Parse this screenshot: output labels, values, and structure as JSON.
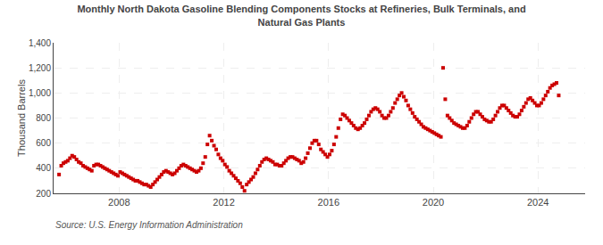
{
  "chart_data": {
    "type": "scatter",
    "title": "Monthly North Dakota Gasoline Blending Components Stocks at Refineries, Bulk Terminals, and\nNatural Gas Plants",
    "ylabel": "Thousand Barrels",
    "annotations": [
      "Source: U.S. Energy Information Administration"
    ],
    "color": "#cc0000",
    "marker": "square",
    "grid": true,
    "xlim": [
      2005.5,
      2025.8
    ],
    "xticks": [
      2008,
      2012,
      2016,
      2020,
      2024
    ],
    "ylim": [
      200,
      1400
    ],
    "yticks": [
      200,
      400,
      600,
      800,
      {
        "value": 1000,
        "label": "1,000"
      },
      {
        "value": 1200,
        "label": "1,200"
      },
      {
        "value": 1400,
        "label": "1,400"
      }
    ],
    "x": [
      2005.7083,
      2005.7917,
      2005.875,
      2005.9583,
      2006.0417,
      2006.125,
      2006.2083,
      2006.2917,
      2006.375,
      2006.4583,
      2006.5417,
      2006.625,
      2006.7083,
      2006.7917,
      2006.875,
      2006.9583,
      2007.0417,
      2007.125,
      2007.2083,
      2007.2917,
      2007.375,
      2007.4583,
      2007.5417,
      2007.625,
      2007.7083,
      2007.7917,
      2007.875,
      2007.9583,
      2008.0417,
      2008.125,
      2008.2083,
      2008.2917,
      2008.375,
      2008.4583,
      2008.5417,
      2008.625,
      2008.7083,
      2008.7917,
      2008.875,
      2008.9583,
      2009.0417,
      2009.125,
      2009.2083,
      2009.2917,
      2009.375,
      2009.4583,
      2009.5417,
      2009.625,
      2009.7083,
      2009.7917,
      2009.875,
      2009.9583,
      2010.0417,
      2010.125,
      2010.2083,
      2010.2917,
      2010.375,
      2010.4583,
      2010.5417,
      2010.625,
      2010.7083,
      2010.7917,
      2010.875,
      2010.9583,
      2011.0417,
      2011.125,
      2011.2083,
      2011.2917,
      2011.375,
      2011.4583,
      2011.5417,
      2011.625,
      2011.7083,
      2011.7917,
      2011.875,
      2011.9583,
      2012.0417,
      2012.125,
      2012.2083,
      2012.2917,
      2012.375,
      2012.4583,
      2012.5417,
      2012.625,
      2012.7083,
      2012.7917,
      2012.875,
      2012.9583,
      2013.0417,
      2013.125,
      2013.2083,
      2013.2917,
      2013.375,
      2013.4583,
      2013.5417,
      2013.625,
      2013.7083,
      2013.7917,
      2013.875,
      2013.9583,
      2014.0417,
      2014.125,
      2014.2083,
      2014.2917,
      2014.375,
      2014.4583,
      2014.5417,
      2014.625,
      2014.7083,
      2014.7917,
      2014.875,
      2014.9583,
      2015.0417,
      2015.125,
      2015.2083,
      2015.2917,
      2015.375,
      2015.4583,
      2015.5417,
      2015.625,
      2015.7083,
      2015.7917,
      2015.875,
      2015.9583,
      2016.0417,
      2016.125,
      2016.2083,
      2016.2917,
      2016.375,
      2016.4583,
      2016.5417,
      2016.625,
      2016.7083,
      2016.7917,
      2016.875,
      2016.9583,
      2017.0417,
      2017.125,
      2017.2083,
      2017.2917,
      2017.375,
      2017.4583,
      2017.5417,
      2017.625,
      2017.7083,
      2017.7917,
      2017.875,
      2017.9583,
      2018.0417,
      2018.125,
      2018.2083,
      2018.2917,
      2018.375,
      2018.4583,
      2018.5417,
      2018.625,
      2018.7083,
      2018.7917,
      2018.875,
      2018.9583,
      2019.0417,
      2019.125,
      2019.2083,
      2019.2917,
      2019.375,
      2019.4583,
      2019.5417,
      2019.625,
      2019.7083,
      2019.7917,
      2019.875,
      2019.9583,
      2020.0417,
      2020.125,
      2020.2083,
      2020.2917,
      2020.375,
      2020.4583,
      2020.5417,
      2020.625,
      2020.7083,
      2020.7917,
      2020.875,
      2020.9583,
      2021.0417,
      2021.125,
      2021.2083,
      2021.2917,
      2021.375,
      2021.4583,
      2021.5417,
      2021.625,
      2021.7083,
      2021.7917,
      2021.875,
      2021.9583,
      2022.0417,
      2022.125,
      2022.2083,
      2022.2917,
      2022.375,
      2022.4583,
      2022.5417,
      2022.625,
      2022.7083,
      2022.7917,
      2022.875,
      2022.9583,
      2023.0417,
      2023.125,
      2023.2083,
      2023.2917,
      2023.375,
      2023.4583,
      2023.5417,
      2023.625,
      2023.7083,
      2023.7917,
      2023.875,
      2023.9583,
      2024.0417,
      2024.125,
      2024.2083,
      2024.2917,
      2024.375,
      2024.4583,
      2024.5417,
      2024.625,
      2024.7083,
      2024.7917
    ],
    "values": [
      350,
      420,
      440,
      450,
      460,
      480,
      500,
      490,
      470,
      450,
      440,
      420,
      410,
      400,
      390,
      380,
      420,
      430,
      430,
      420,
      410,
      400,
      390,
      380,
      370,
      360,
      350,
      340,
      370,
      360,
      350,
      340,
      330,
      320,
      310,
      300,
      300,
      290,
      280,
      270,
      270,
      260,
      250,
      270,
      290,
      310,
      330,
      350,
      370,
      380,
      370,
      360,
      350,
      360,
      380,
      400,
      420,
      430,
      420,
      410,
      400,
      390,
      380,
      370,
      380,
      400,
      440,
      490,
      590,
      660,
      620,
      580,
      550,
      510,
      480,
      460,
      430,
      410,
      380,
      360,
      340,
      320,
      300,
      280,
      250,
      220,
      270,
      290,
      310,
      330,
      360,
      390,
      420,
      450,
      470,
      480,
      470,
      460,
      450,
      430,
      430,
      420,
      420,
      440,
      460,
      480,
      490,
      490,
      480,
      470,
      460,
      440,
      450,
      480,
      520,
      560,
      600,
      620,
      620,
      590,
      550,
      530,
      510,
      490,
      510,
      540,
      590,
      650,
      720,
      790,
      830,
      820,
      800,
      780,
      760,
      740,
      720,
      710,
      720,
      740,
      760,
      790,
      820,
      850,
      870,
      880,
      870,
      850,
      820,
      800,
      800,
      820,
      850,
      880,
      920,
      950,
      980,
      1000,
      970,
      940,
      900,
      870,
      840,
      810,
      790,
      770,
      750,
      730,
      720,
      710,
      700,
      690,
      680,
      670,
      660,
      650,
      1200,
      950,
      820,
      800,
      780,
      760,
      750,
      740,
      730,
      720,
      720,
      740,
      770,
      800,
      830,
      850,
      850,
      830,
      810,
      790,
      780,
      770,
      770,
      790,
      820,
      850,
      880,
      900,
      900,
      880,
      860,
      840,
      820,
      810,
      810,
      830,
      860,
      890,
      920,
      950,
      960,
      940,
      920,
      900,
      900,
      920,
      950,
      980,
      1010,
      1040,
      1060,
      1070,
      1080,
      980
    ]
  }
}
